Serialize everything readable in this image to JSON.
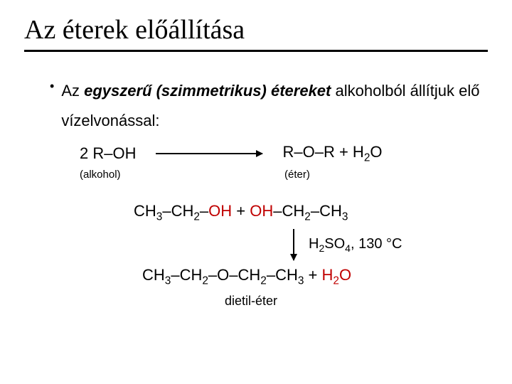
{
  "title": "Az éterek előállítása",
  "bullet": {
    "prefix": "Az ",
    "em": "egyszerű (szimmetrikus) étereket",
    "rest": " alkoholból állítjuk elő vízelvonással:"
  },
  "eq1": {
    "reactant": "2 R–OH",
    "product_pre": "R–O–R + H",
    "product_sub": "2",
    "product_post": "O"
  },
  "labels": {
    "alcohol": "(alkohol)",
    "ether": "(éter)"
  },
  "eq2": {
    "p1": "CH",
    "s1": "3",
    "p2": "–CH",
    "s2": "2",
    "p3": "–",
    "oh1": "OH",
    "plus": "  +  ",
    "oh2": "OH",
    "p4": "–CH",
    "s3": "2",
    "p5": "–CH",
    "s4": "3"
  },
  "cond": {
    "p1": "H",
    "s1": "2",
    "p2": "SO",
    "s2": "4",
    "p3": ", 130 °C"
  },
  "eq3": {
    "p1": "CH",
    "s1": "3",
    "p2": "–CH",
    "s2": "2",
    "p3": "–O–CH",
    "s3": "2",
    "p4": "–CH",
    "s4": "3",
    "plus": " + ",
    "h2o_h": "H",
    "h2o_s": "2",
    "h2o_o": "O"
  },
  "name": "dietil-éter",
  "colors": {
    "emph": "#c00000",
    "text": "#000000",
    "background": "#ffffff"
  },
  "fonts": {
    "title_family": "Times New Roman",
    "title_size": 38,
    "body_family": "Arial",
    "body_size": 22,
    "label_size": 15
  }
}
